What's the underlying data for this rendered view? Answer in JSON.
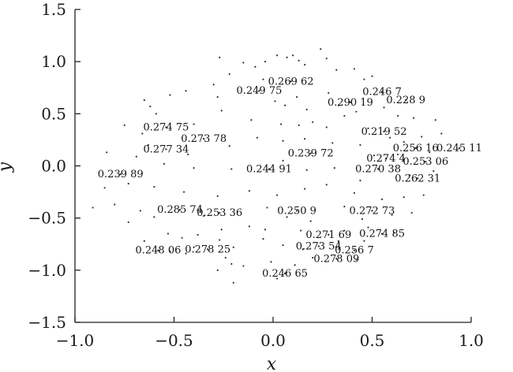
{
  "chart_data": {
    "type": "scatter",
    "title": "",
    "xlabel": "x",
    "ylabel": "y",
    "xlim": [
      -1.0,
      1.0
    ],
    "ylim": [
      -1.5,
      1.5
    ],
    "grid": false,
    "x_ticks": [
      -1.0,
      -0.5,
      0.0,
      0.5,
      1.0
    ],
    "y_ticks": [
      -1.5,
      -1.0,
      -0.5,
      0.0,
      0.5,
      1.0,
      1.5
    ],
    "x_tick_labels": [
      "−1.0",
      "−0.5",
      "0.0",
      "0.5",
      "1.0"
    ],
    "y_tick_labels": [
      "−1.5",
      "−1.0",
      "−0.5",
      "0.0",
      "0.5",
      "1.0",
      "1.5"
    ],
    "annotations": [
      {
        "x": 0.09,
        "y": 0.81,
        "text": "0.269 62"
      },
      {
        "x": -0.07,
        "y": 0.72,
        "text": "0.249 75"
      },
      {
        "x": 0.55,
        "y": 0.71,
        "text": "0.246 7"
      },
      {
        "x": 0.67,
        "y": 0.63,
        "text": "0.228 9"
      },
      {
        "x": 0.39,
        "y": 0.61,
        "text": "0.290 19"
      },
      {
        "x": -0.54,
        "y": 0.37,
        "text": "0.274 75"
      },
      {
        "x": 0.56,
        "y": 0.33,
        "text": "0.219 52"
      },
      {
        "x": -0.35,
        "y": 0.26,
        "text": "0.273 78"
      },
      {
        "x": -0.54,
        "y": 0.16,
        "text": "0.277 34"
      },
      {
        "x": 0.72,
        "y": 0.17,
        "text": "0.256 16"
      },
      {
        "x": 0.94,
        "y": 0.17,
        "text": "0.245 11"
      },
      {
        "x": 0.19,
        "y": 0.12,
        "text": "0.239 72"
      },
      {
        "x": 0.57,
        "y": 0.07,
        "text": "0.274 4"
      },
      {
        "x": 0.77,
        "y": 0.04,
        "text": "0.253 06"
      },
      {
        "x": 0.53,
        "y": -0.03,
        "text": "0.270 38"
      },
      {
        "x": -0.02,
        "y": -0.03,
        "text": "0.244 91"
      },
      {
        "x": -0.77,
        "y": -0.08,
        "text": "0.239 89"
      },
      {
        "x": 0.73,
        "y": -0.12,
        "text": "0.262 31"
      },
      {
        "x": -0.47,
        "y": -0.42,
        "text": "0.285 74"
      },
      {
        "x": -0.27,
        "y": -0.45,
        "text": "0.253 36"
      },
      {
        "x": 0.12,
        "y": -0.43,
        "text": "0.250 9"
      },
      {
        "x": 0.5,
        "y": -0.43,
        "text": "0.272 73"
      },
      {
        "x": 0.28,
        "y": -0.66,
        "text": "0.271 69"
      },
      {
        "x": 0.55,
        "y": -0.65,
        "text": "0.274 85"
      },
      {
        "x": 0.23,
        "y": -0.77,
        "text": "0.273 54"
      },
      {
        "x": 0.41,
        "y": -0.81,
        "text": "0.256 7"
      },
      {
        "x": -0.58,
        "y": -0.81,
        "text": "0.248 06"
      },
      {
        "x": -0.33,
        "y": -0.8,
        "text": "0.278 25"
      },
      {
        "x": 0.32,
        "y": -0.89,
        "text": "0.278 09"
      },
      {
        "x": 0.06,
        "y": -1.03,
        "text": "0.246 65"
      }
    ],
    "points": [
      [
        -0.27,
        1.04
      ],
      [
        -0.15,
        0.99
      ],
      [
        -0.09,
        0.95
      ],
      [
        -0.04,
        1.0
      ],
      [
        0.02,
        1.06
      ],
      [
        0.07,
        1.04
      ],
      [
        0.1,
        1.06
      ],
      [
        0.13,
        1.01
      ],
      [
        0.16,
        0.97
      ],
      [
        0.24,
        1.12
      ],
      [
        0.27,
        1.03
      ],
      [
        0.32,
        0.92
      ],
      [
        0.41,
        0.93
      ],
      [
        0.46,
        0.83
      ],
      [
        0.5,
        0.86
      ],
      [
        -0.22,
        0.88
      ],
      [
        -0.3,
        0.78
      ],
      [
        -0.44,
        0.72
      ],
      [
        -0.52,
        0.68
      ],
      [
        -0.65,
        0.63
      ],
      [
        -0.62,
        0.57
      ],
      [
        -0.59,
        0.5
      ],
      [
        -0.28,
        0.66
      ],
      [
        -0.26,
        0.53
      ],
      [
        -0.05,
        0.83
      ],
      [
        0.01,
        0.62
      ],
      [
        0.06,
        0.58
      ],
      [
        0.12,
        0.66
      ],
      [
        0.17,
        0.54
      ],
      [
        0.28,
        0.7
      ],
      [
        0.33,
        0.58
      ],
      [
        0.42,
        0.52
      ],
      [
        0.56,
        0.56
      ],
      [
        0.63,
        0.48
      ],
      [
        0.71,
        0.46
      ],
      [
        -0.75,
        0.39
      ],
      [
        -0.66,
        0.31
      ],
      [
        -0.4,
        0.4
      ],
      [
        -0.11,
        0.44
      ],
      [
        0.04,
        0.4
      ],
      [
        0.13,
        0.39
      ],
      [
        0.2,
        0.42
      ],
      [
        0.27,
        0.37
      ],
      [
        0.36,
        0.48
      ],
      [
        0.48,
        0.36
      ],
      [
        0.59,
        0.27
      ],
      [
        0.66,
        0.23
      ],
      [
        0.75,
        0.28
      ],
      [
        0.82,
        0.44
      ],
      [
        0.85,
        0.31
      ],
      [
        -0.63,
        0.2
      ],
      [
        -0.43,
        0.11
      ],
      [
        -0.22,
        0.19
      ],
      [
        -0.08,
        0.27
      ],
      [
        0.05,
        0.24
      ],
      [
        0.16,
        0.26
      ],
      [
        0.3,
        0.22
      ],
      [
        0.44,
        0.2
      ],
      [
        0.51,
        0.1
      ],
      [
        0.63,
        0.11
      ],
      [
        0.79,
        0.13
      ],
      [
        -0.84,
        0.13
      ],
      [
        -0.69,
        0.09
      ],
      [
        -0.55,
        0.02
      ],
      [
        -0.4,
        -0.02
      ],
      [
        -0.21,
        -0.03
      ],
      [
        0.05,
        0.05
      ],
      [
        0.17,
        -0.04
      ],
      [
        0.31,
        -0.02
      ],
      [
        0.44,
        -0.14
      ],
      [
        0.69,
        -0.09
      ],
      [
        0.81,
        -0.05
      ],
      [
        -0.85,
        -0.21
      ],
      [
        -0.73,
        -0.17
      ],
      [
        -0.6,
        -0.2
      ],
      [
        -0.45,
        -0.25
      ],
      [
        -0.28,
        -0.29
      ],
      [
        -0.12,
        -0.24
      ],
      [
        0.02,
        -0.28
      ],
      [
        0.16,
        -0.22
      ],
      [
        0.27,
        -0.18
      ],
      [
        0.41,
        -0.26
      ],
      [
        0.55,
        -0.32
      ],
      [
        0.66,
        -0.3
      ],
      [
        0.76,
        -0.28
      ],
      [
        -0.91,
        -0.4
      ],
      [
        -0.8,
        -0.37
      ],
      [
        -0.67,
        -0.43
      ],
      [
        -0.6,
        -0.49
      ],
      [
        -0.35,
        -0.48
      ],
      [
        -0.03,
        -0.4
      ],
      [
        0.07,
        -0.49
      ],
      [
        0.19,
        -0.53
      ],
      [
        0.36,
        -0.39
      ],
      [
        0.45,
        -0.51
      ],
      [
        0.6,
        -0.47
      ],
      [
        0.7,
        -0.45
      ],
      [
        -0.73,
        -0.54
      ],
      [
        -0.53,
        -0.65
      ],
      [
        -0.46,
        -0.69
      ],
      [
        -0.38,
        -0.66
      ],
      [
        -0.26,
        -0.61
      ],
      [
        -0.12,
        -0.58
      ],
      [
        -0.04,
        -0.61
      ],
      [
        0.14,
        -0.62
      ],
      [
        0.36,
        -0.62
      ],
      [
        0.48,
        -0.59
      ],
      [
        0.61,
        -0.64
      ],
      [
        -0.65,
        -0.72
      ],
      [
        -0.52,
        -0.82
      ],
      [
        -0.4,
        -0.78
      ],
      [
        -0.27,
        -0.71
      ],
      [
        -0.2,
        -0.78
      ],
      [
        -0.05,
        -0.7
      ],
      [
        0.05,
        -0.76
      ],
      [
        0.15,
        -0.8
      ],
      [
        0.33,
        -0.72
      ],
      [
        0.46,
        -0.72
      ],
      [
        -0.44,
        -0.84
      ],
      [
        -0.24,
        -0.88
      ],
      [
        -0.21,
        -0.94
      ],
      [
        -0.28,
        -1.0
      ],
      [
        -0.2,
        -1.12
      ],
      [
        -0.15,
        -0.96
      ],
      [
        -0.01,
        -0.92
      ],
      [
        0.11,
        -0.95
      ],
      [
        0.2,
        -0.88
      ],
      [
        0.42,
        -0.9
      ],
      [
        0.02,
        -1.08
      ]
    ]
  }
}
